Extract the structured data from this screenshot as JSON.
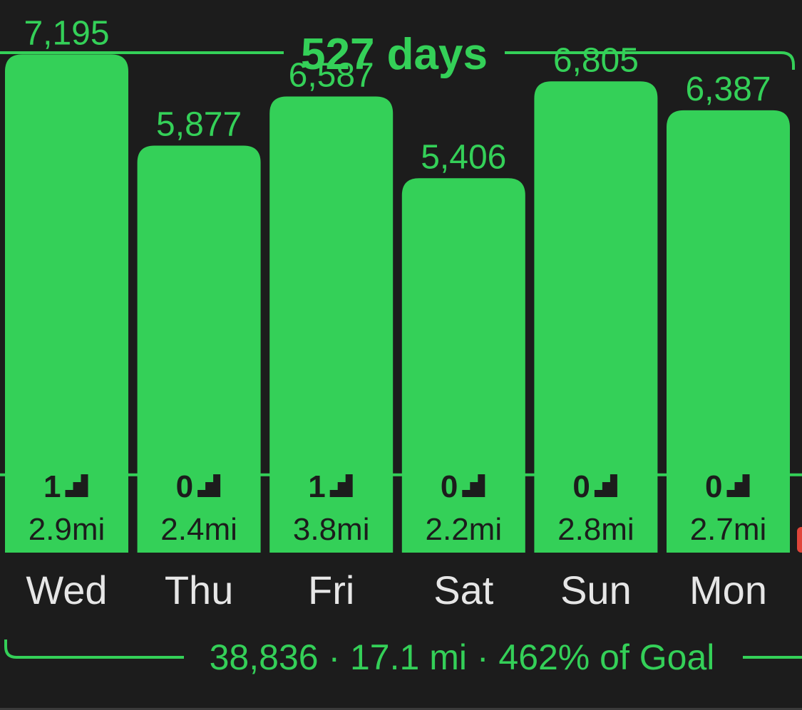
{
  "colors": {
    "background": "#1c1c1c",
    "accent": "#34d058",
    "text_dark": "#1c1c1c",
    "day_label": "#e6e6e6",
    "edge_red": "#e0453a"
  },
  "streak": {
    "label": "527 days"
  },
  "summary": {
    "label": "38,836 · 17.1 mi · 462% of Goal"
  },
  "icons": {
    "floors": "stairs-icon"
  },
  "chart_data": {
    "type": "bar",
    "categories": [
      "Wed",
      "Thu",
      "Fri",
      "Sat",
      "Sun",
      "Mon"
    ],
    "values": [
      7195,
      5877,
      6587,
      5406,
      6805,
      6387
    ],
    "value_labels": [
      "7,195",
      "5,877",
      "6,587",
      "5,406",
      "6,805",
      "6,387"
    ],
    "floors": [
      1,
      0,
      1,
      0,
      0,
      0
    ],
    "distances": [
      "2.9mi",
      "2.4mi",
      "3.8mi",
      "2.2mi",
      "2.8mi",
      "2.7mi"
    ],
    "ylim": [
      0,
      7980
    ],
    "goal_line": 1123,
    "grid": false
  }
}
